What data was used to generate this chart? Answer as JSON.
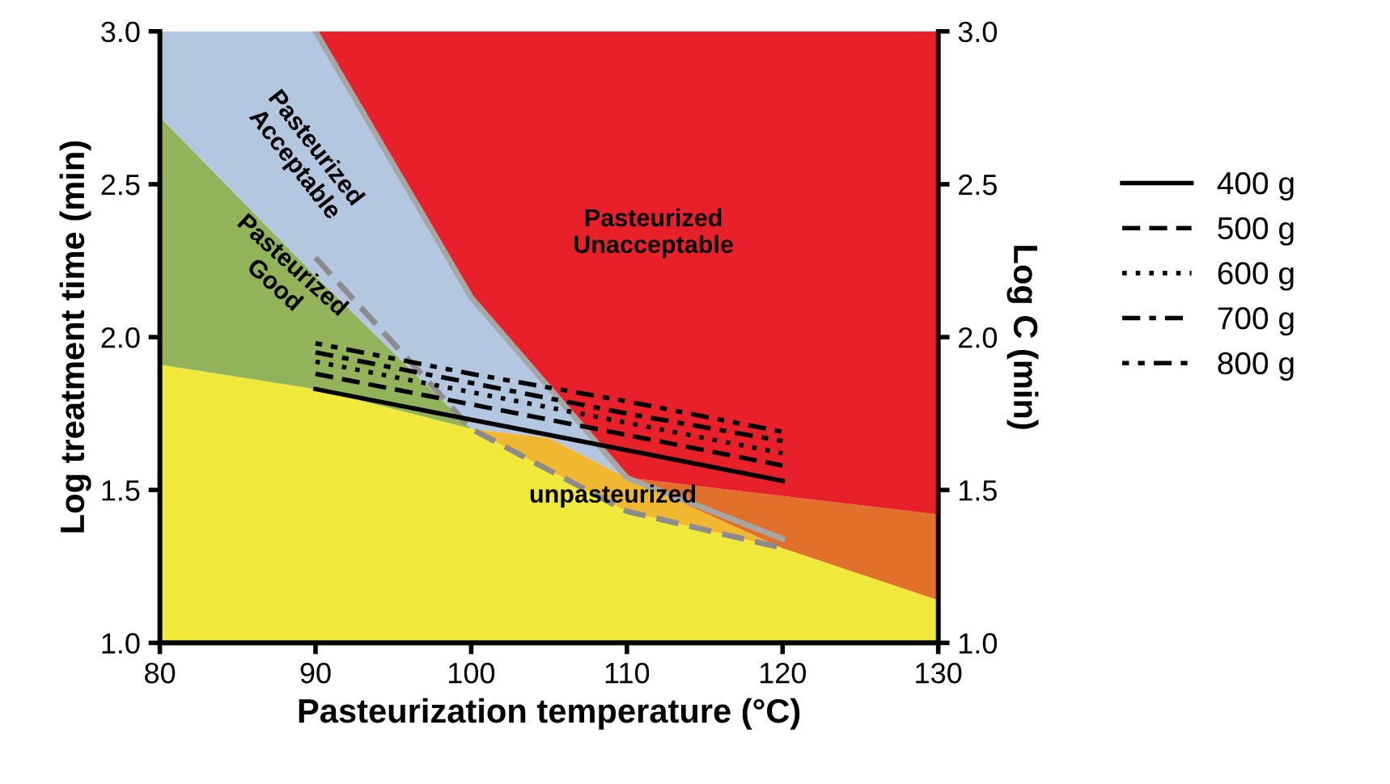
{
  "chart_data": {
    "type": "line",
    "xlabel": "Pasteurization temperature (°C)",
    "ylabel": "Log treatment time (min)",
    "y2label": "Log C (min)",
    "xlim": [
      80,
      130
    ],
    "xticks": [
      80,
      90,
      100,
      110,
      120,
      130
    ],
    "ylim": [
      1.0,
      3.0
    ],
    "yticks": [
      {
        "value": 1.0,
        "label": "1.0"
      },
      {
        "value": 1.5,
        "label": "1.5"
      },
      {
        "value": 2.0,
        "label": "2.0"
      },
      {
        "value": 2.5,
        "label": "2.5"
      },
      {
        "value": 3.0,
        "label": "3.0"
      }
    ],
    "y2lim": [
      1.0,
      3.0
    ],
    "y2ticks": [
      {
        "value": 1.0,
        "label": "1.0"
      },
      {
        "value": 1.5,
        "label": "1.5"
      },
      {
        "value": 2.0,
        "label": "2.0"
      },
      {
        "value": 2.5,
        "label": "2.5"
      },
      {
        "value": 3.0,
        "label": "3.0"
      }
    ],
    "grid": false,
    "legend": "right",
    "series": [
      {
        "type": "area",
        "color": "#f0e83a",
        "x": [
          80,
          90,
          100,
          105,
          110,
          120,
          130
        ],
        "values": [
          1.91,
          1.83,
          1.7,
          1.565,
          1.43,
          1.31,
          1.14
        ]
      },
      {
        "type": "area",
        "color": "#93b35a",
        "x": [
          80,
          90,
          100
        ],
        "values": [
          2.72,
          2.2,
          1.7
        ]
      },
      {
        "type": "area",
        "color": "#f0b830",
        "x": [
          100,
          105,
          110,
          120
        ],
        "values": [
          1.7,
          1.67,
          1.54,
          1.31
        ]
      },
      {
        "type": "area",
        "color": "#b4c7e0",
        "x": [
          80,
          90,
          100,
          105,
          110
        ],
        "values": [
          3.0,
          3.0,
          2.13,
          1.83,
          1.54
        ]
      },
      {
        "type": "area",
        "color": "#e0702a",
        "x": [
          110,
          120,
          130
        ],
        "values": [
          1.54,
          1.48,
          1.42
        ]
      },
      {
        "type": "area",
        "color": "#e8202a",
        "x": [
          90,
          100,
          105,
          110,
          120,
          130
        ],
        "values": [
          3.0,
          3.0,
          3.0,
          3.0,
          3.0,
          3.0
        ]
      },
      {
        "color": "#a6a6a6",
        "line_style": "solid",
        "x": [
          90,
          100,
          110,
          120
        ],
        "values": [
          3.0,
          2.13,
          1.54,
          1.34
        ]
      },
      {
        "color": "#8c8c8c",
        "line_style": "dashed",
        "x": [
          90,
          100,
          110,
          120
        ],
        "values": [
          2.26,
          1.7,
          1.43,
          1.31
        ]
      },
      {
        "name": "400 g",
        "color": "#000000",
        "line_style": "solid",
        "x": [
          90,
          100,
          110,
          120
        ],
        "values": [
          1.83,
          1.73,
          1.63,
          1.53
        ]
      },
      {
        "name": "500 g",
        "color": "#000000",
        "line_style": "dashed",
        "x": [
          90,
          100,
          110,
          120
        ],
        "values": [
          1.88,
          1.78,
          1.68,
          1.58
        ]
      },
      {
        "name": "600 g",
        "color": "#000000",
        "line_style": "dotted",
        "x": [
          90,
          100,
          110,
          120
        ],
        "values": [
          1.92,
          1.82,
          1.72,
          1.62
        ]
      },
      {
        "name": "700 g",
        "color": "#000000",
        "line_style": "dashdot",
        "x": [
          90,
          100,
          110,
          120
        ],
        "values": [
          1.95,
          1.85,
          1.75,
          1.66
        ]
      },
      {
        "name": "800 g",
        "color": "#000000",
        "line_style": "dotdotdash",
        "x": [
          90,
          100,
          110,
          120
        ],
        "values": [
          1.98,
          1.88,
          1.79,
          1.69
        ]
      }
    ],
    "annotations": [
      "Pasteurized\nAcceptable",
      "Pasteurized\nGood",
      "Pasteurized\nUnacceptable",
      "unpasteurized"
    ]
  }
}
